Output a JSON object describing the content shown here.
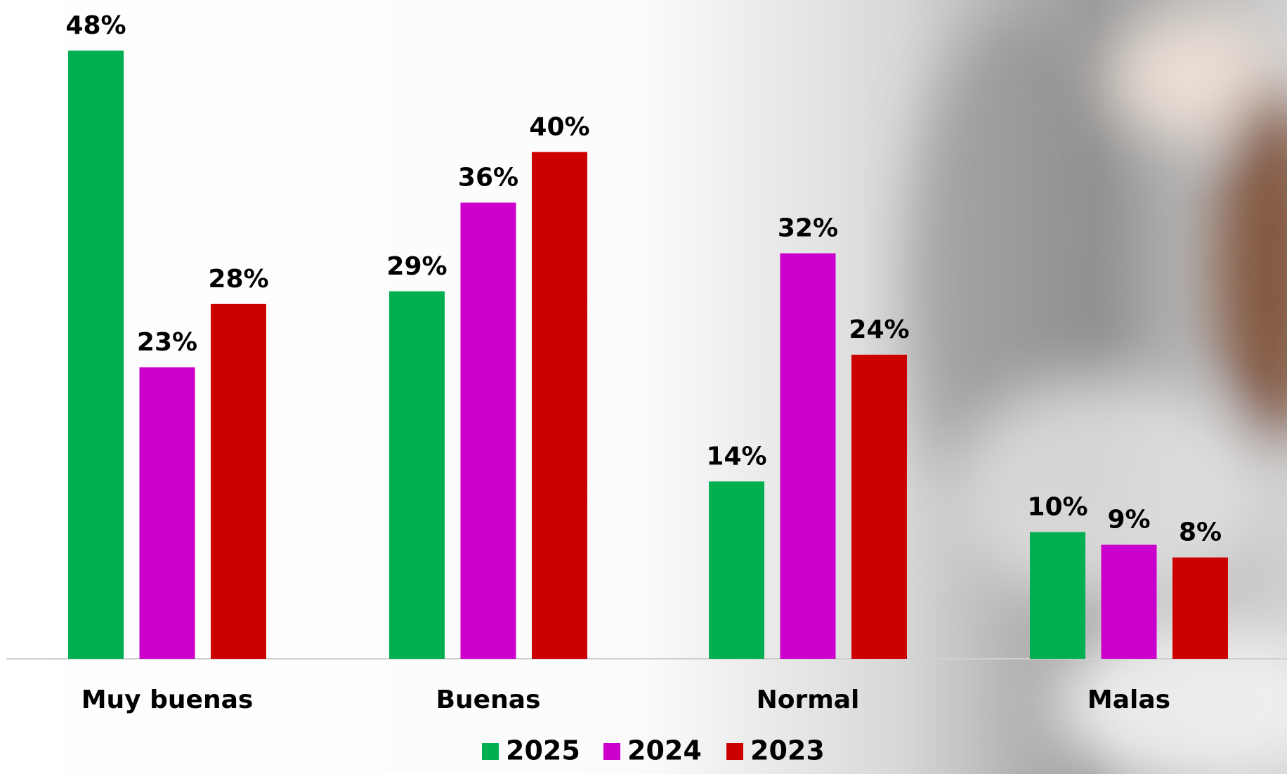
{
  "chart_data": {
    "type": "bar",
    "categories": [
      "Muy buenas",
      "Buenas",
      "Normal",
      "Malas"
    ],
    "series": [
      {
        "name": "2025",
        "color": "#00b050",
        "values": [
          48,
          29,
          14,
          10
        ],
        "value_labels": [
          "48%",
          "29%",
          "14%",
          "10%"
        ]
      },
      {
        "name": "2024",
        "color": "#cc00cc",
        "values": [
          23,
          36,
          32,
          9
        ],
        "value_labels": [
          "23%",
          "36%",
          "32%",
          "9%"
        ]
      },
      {
        "name": "2023",
        "color": "#cc0000",
        "values": [
          28,
          40,
          24,
          8
        ],
        "value_labels": [
          "28%",
          "40%",
          "24%",
          "8%"
        ]
      }
    ],
    "legend": "bottom"
  }
}
